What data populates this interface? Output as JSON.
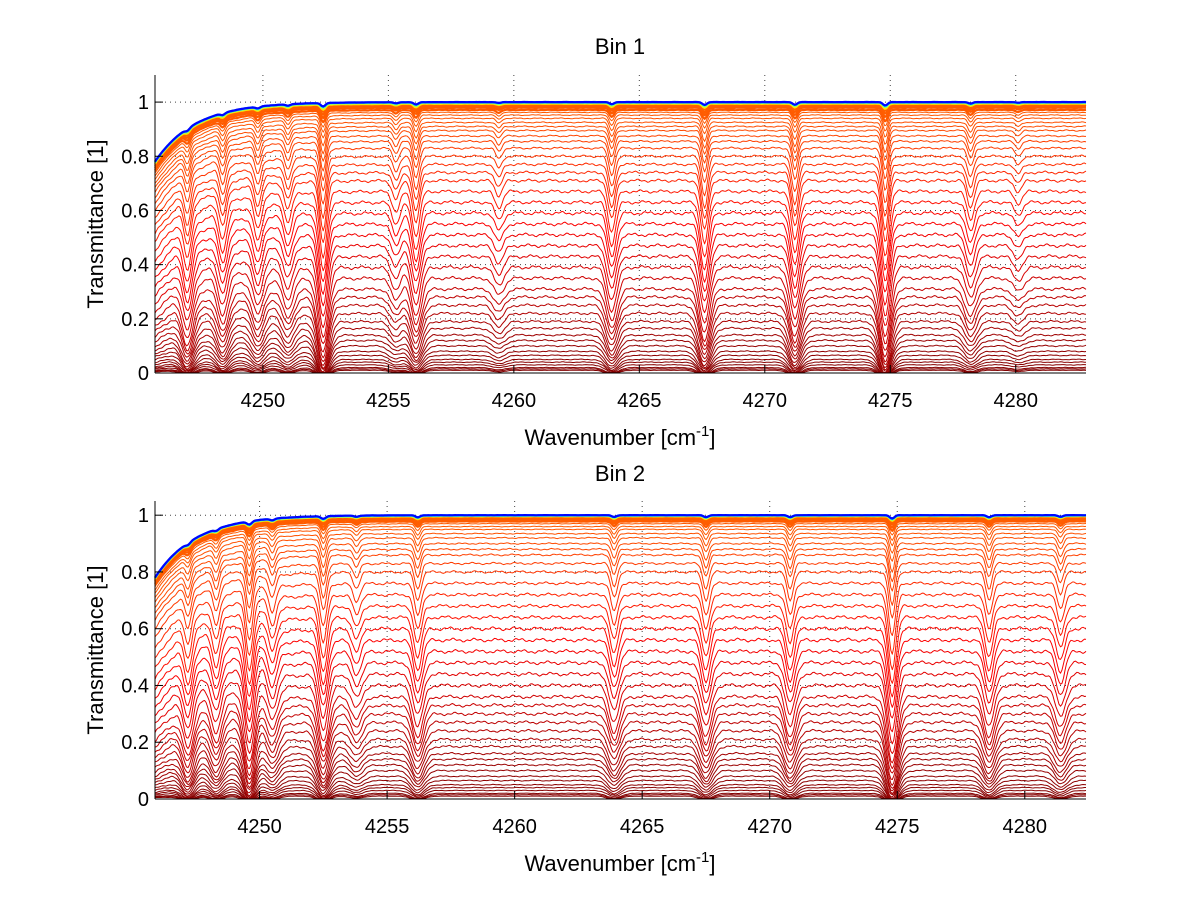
{
  "chart_data": [
    {
      "type": "line",
      "title": "Bin 1",
      "xlabel_main": "Wavenumber [cm",
      "xlabel_sup": "-1",
      "xlabel_end": "]",
      "ylabel": "Transmittance [1]",
      "xlim": [
        4245.7,
        4282.8
      ],
      "ylim": [
        0,
        1.1
      ],
      "xticks": [
        4250,
        4255,
        4260,
        4265,
        4270,
        4275,
        4280
      ],
      "xtick_labels": [
        "4250",
        "4255",
        "4260",
        "4265",
        "4270",
        "4275",
        "4280"
      ],
      "yticks": [
        0,
        0.2,
        0.4,
        0.6,
        0.8,
        1
      ],
      "ytick_labels": [
        "0",
        "0.2",
        "0.4",
        "0.6",
        "0.8",
        "1"
      ],
      "grid": "dotted",
      "colormap": "jet",
      "series_count": 48,
      "baseline_levels": [
        0.01,
        0.015,
        0.02,
        0.03,
        0.04,
        0.05,
        0.065,
        0.08,
        0.1,
        0.12,
        0.14,
        0.165,
        0.19,
        0.22,
        0.25,
        0.28,
        0.31,
        0.35,
        0.39,
        0.43,
        0.47,
        0.51,
        0.55,
        0.59,
        0.63,
        0.67,
        0.71,
        0.74,
        0.77,
        0.8,
        0.83,
        0.855,
        0.875,
        0.895,
        0.91,
        0.925,
        0.94,
        0.952,
        0.962,
        0.971,
        0.979,
        0.985,
        0.99,
        0.994,
        0.997,
        0.999,
        1.0,
        1.0
      ],
      "absorption_lines_cm-1": [
        4247.0,
        4248.4,
        4249.8,
        4251.0,
        4252.4,
        4255.3,
        4256.1,
        4259.4,
        4263.9,
        4267.6,
        4271.2,
        4274.8,
        4278.2,
        4280.1
      ],
      "absorption_depths": [
        0.5,
        0.45,
        0.4,
        0.35,
        0.8,
        0.25,
        0.55,
        0.2,
        0.5,
        0.65,
        0.6,
        0.8,
        0.35,
        0.15
      ]
    },
    {
      "type": "line",
      "title": "Bin 2",
      "xlabel_main": "Wavenumber [cm",
      "xlabel_sup": "-1",
      "xlabel_end": "]",
      "ylabel": "Transmittance [1]",
      "xlim": [
        4245.9,
        4282.4
      ],
      "ylim": [
        0,
        1.05
      ],
      "xticks": [
        4250,
        4255,
        4260,
        4265,
        4270,
        4275,
        4280
      ],
      "xtick_labels": [
        "4250",
        "4255",
        "4260",
        "4265",
        "4270",
        "4275",
        "4280"
      ],
      "yticks": [
        0,
        0.2,
        0.4,
        0.6,
        0.8,
        1
      ],
      "ytick_labels": [
        "0",
        "0.2",
        "0.4",
        "0.6",
        "0.8",
        "1"
      ],
      "grid": "dotted",
      "colormap": "jet",
      "series_count": 48,
      "baseline_levels": [
        0.01,
        0.015,
        0.02,
        0.03,
        0.04,
        0.05,
        0.065,
        0.08,
        0.1,
        0.12,
        0.14,
        0.16,
        0.185,
        0.21,
        0.24,
        0.27,
        0.3,
        0.33,
        0.36,
        0.4,
        0.44,
        0.48,
        0.52,
        0.56,
        0.6,
        0.64,
        0.68,
        0.72,
        0.76,
        0.8,
        0.83,
        0.86,
        0.88,
        0.9,
        0.92,
        0.935,
        0.95,
        0.96,
        0.97,
        0.978,
        0.984,
        0.989,
        0.993,
        0.996,
        0.998,
        0.999,
        1.0,
        1.0
      ],
      "absorption_lines_cm-1": [
        4247.2,
        4248.3,
        4249.6,
        4250.5,
        4252.5,
        4253.8,
        4256.2,
        4263.9,
        4267.5,
        4270.8,
        4274.8,
        4278.6,
        4281.4
      ],
      "absorption_depths": [
        0.45,
        0.4,
        0.7,
        0.35,
        0.6,
        0.25,
        0.45,
        0.4,
        0.45,
        0.45,
        0.75,
        0.45,
        0.35
      ]
    }
  ]
}
